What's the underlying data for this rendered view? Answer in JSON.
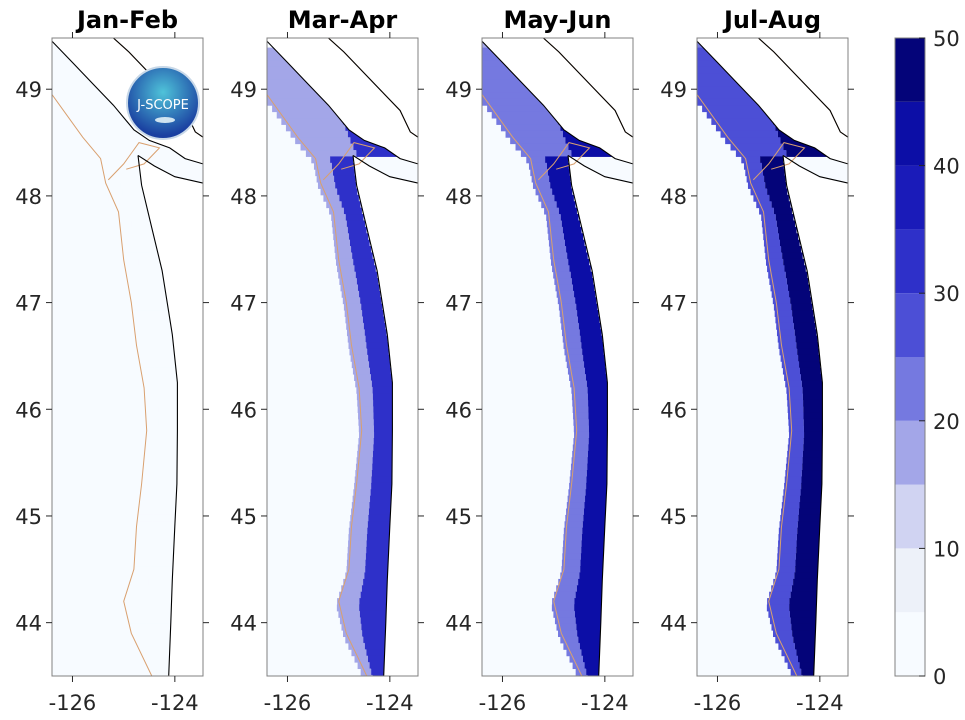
{
  "chart_data": {
    "type": "heatmap",
    "panels": [
      {
        "title": "Jan-Feb",
        "nearshore_level_by_latitude": [
          [
            49.4,
            2
          ],
          [
            48.5,
            3
          ],
          [
            48,
            4
          ],
          [
            47,
            4
          ],
          [
            46,
            3
          ],
          [
            45,
            3
          ],
          [
            44,
            3
          ],
          [
            43.5,
            3
          ]
        ]
      },
      {
        "title": "Mar-Apr",
        "nearshore_level_by_latitude": [
          [
            49.4,
            8
          ],
          [
            48.5,
            12
          ],
          [
            48,
            14
          ],
          [
            47,
            22
          ],
          [
            46.5,
            18
          ],
          [
            46,
            18
          ],
          [
            45.5,
            30
          ],
          [
            45,
            25
          ],
          [
            44.5,
            22
          ],
          [
            44,
            30
          ],
          [
            43.5,
            32
          ]
        ]
      },
      {
        "title": "May-Jun",
        "nearshore_level_by_latitude": [
          [
            49.4,
            30
          ],
          [
            48.5,
            30
          ],
          [
            48,
            33
          ],
          [
            47,
            30
          ],
          [
            46.5,
            28
          ],
          [
            46,
            30
          ],
          [
            45.5,
            42
          ],
          [
            45,
            40
          ],
          [
            44.5,
            36
          ],
          [
            44,
            36
          ],
          [
            43.5,
            40
          ]
        ]
      },
      {
        "title": "Jul-Aug",
        "nearshore_level_by_latitude": [
          [
            49.4,
            38
          ],
          [
            48.5,
            40
          ],
          [
            48,
            22
          ],
          [
            47.5,
            46
          ],
          [
            47,
            48
          ],
          [
            46.5,
            48
          ],
          [
            46,
            46
          ],
          [
            45.5,
            48
          ],
          [
            45,
            48
          ],
          [
            44.5,
            48
          ],
          [
            44,
            46
          ],
          [
            43.5,
            48
          ]
        ]
      }
    ],
    "xlim": [
      -126.4,
      -123.45
    ],
    "ylim": [
      43.5,
      49.48
    ],
    "xticks": [
      "-126",
      "-124"
    ],
    "xtick_values": [
      -126,
      -124
    ],
    "yticks": [
      "44",
      "45",
      "46",
      "47",
      "48",
      "49"
    ],
    "ytick_values": [
      44,
      45,
      46,
      47,
      48,
      49
    ],
    "colorbar": {
      "range": [
        0,
        50
      ],
      "ticks": [
        "0",
        "10",
        "20",
        "30",
        "40",
        "50"
      ],
      "tick_values": [
        0,
        10,
        20,
        30,
        40,
        50
      ],
      "levels": 10,
      "colors": [
        "#f7fbff",
        "#edf1f9",
        "#d0d3f2",
        "#a3a6e8",
        "#7579e0",
        "#4c4fd6",
        "#2e30c9",
        "#1a1bb9",
        "#0c0ea6",
        "#040479"
      ]
    },
    "logo_text": "J-SCOPE",
    "colors": {
      "coast": "#000000",
      "shelf_contour": "#d9a06f",
      "ocean_base": "#f7fbff"
    }
  }
}
